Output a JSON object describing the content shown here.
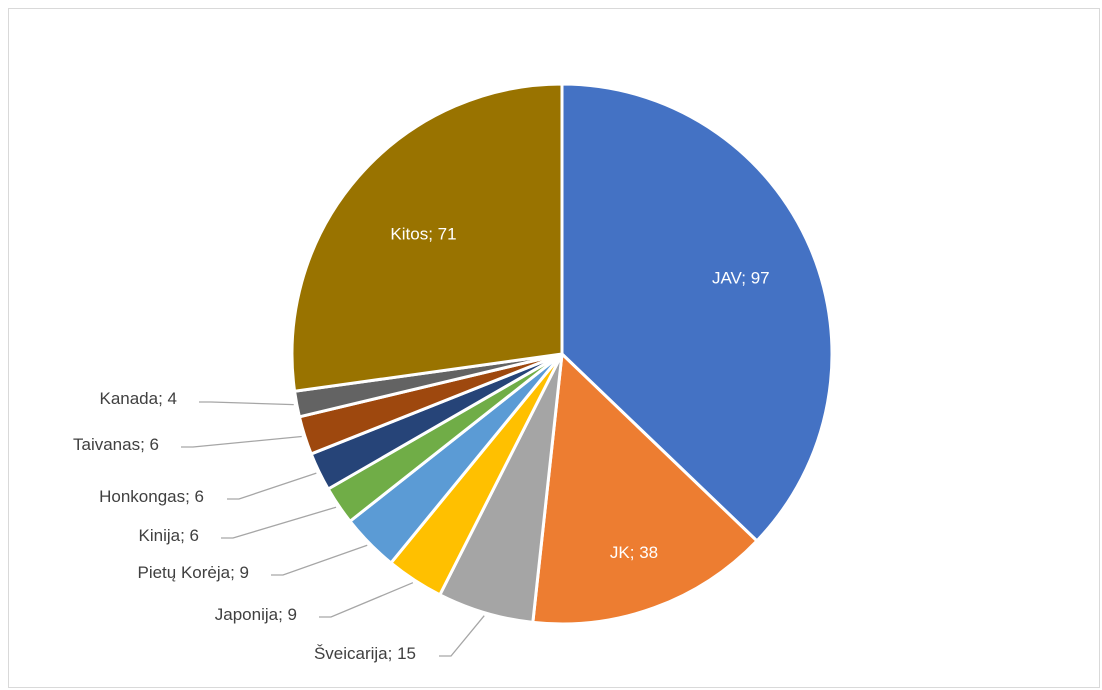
{
  "chart_data": {
    "type": "pie",
    "title": "",
    "start_angle_deg": 0,
    "direction": "clockwise",
    "data_label_format": "{category}; {value}",
    "slices": [
      {
        "category": "JAV",
        "value": 97,
        "color": "#4472C4",
        "label_position": "inside"
      },
      {
        "category": "JK",
        "value": 38,
        "color": "#ED7D31",
        "label_position": "inside"
      },
      {
        "category": "Šveicarija",
        "value": 15,
        "color": "#A5A5A5",
        "label_position": "outside"
      },
      {
        "category": "Japonija",
        "value": 9,
        "color": "#FFC000",
        "label_position": "outside"
      },
      {
        "category": "Pietų Korėja",
        "value": 9,
        "color": "#5B9BD5",
        "label_position": "outside"
      },
      {
        "category": "Kinija",
        "value": 6,
        "color": "#70AD47",
        "label_position": "outside"
      },
      {
        "category": "Honkongas",
        "value": 6,
        "color": "#264478",
        "label_position": "outside"
      },
      {
        "category": "Taivanas",
        "value": 6,
        "color": "#9E480E",
        "label_position": "outside"
      },
      {
        "category": "Kanada",
        "value": 4,
        "color": "#636363",
        "label_position": "outside"
      },
      {
        "category": "Kitos",
        "value": 71,
        "color": "#997300",
        "label_position": "inside"
      }
    ]
  }
}
